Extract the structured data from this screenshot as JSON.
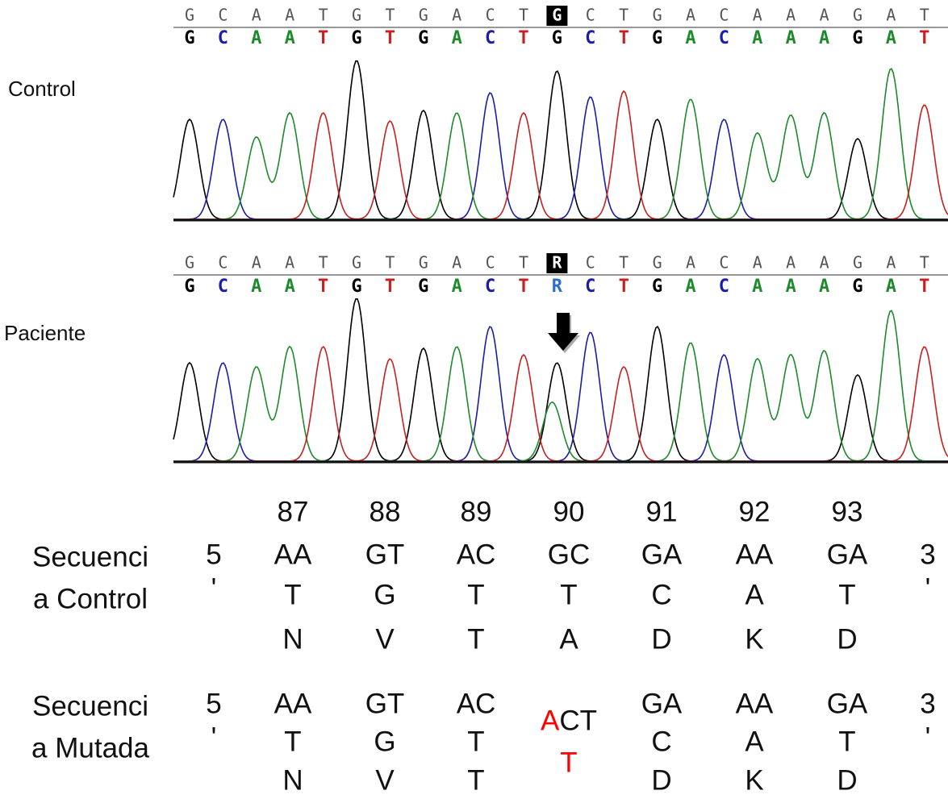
{
  "panels": [
    {
      "label": "Control",
      "ref": [
        "G",
        "C",
        "A",
        "A",
        "T",
        "G",
        "T",
        "G",
        "A",
        "C",
        "T",
        "G",
        "C",
        "T",
        "G",
        "A",
        "C",
        "A",
        "A",
        "A",
        "G",
        "A",
        "T"
      ],
      "call": [
        "G",
        "C",
        "A",
        "A",
        "T",
        "G",
        "T",
        "G",
        "A",
        "C",
        "T",
        "G",
        "C",
        "T",
        "G",
        "A",
        "C",
        "A",
        "A",
        "A",
        "G",
        "A",
        "T"
      ]
    },
    {
      "label": "Paciente",
      "ref": [
        "G",
        "C",
        "A",
        "A",
        "T",
        "G",
        "T",
        "G",
        "A",
        "C",
        "T",
        "R",
        "C",
        "T",
        "G",
        "A",
        "C",
        "A",
        "A",
        "A",
        "G",
        "A",
        "T"
      ],
      "call": [
        "G",
        "C",
        "A",
        "A",
        "T",
        "G",
        "T",
        "G",
        "A",
        "C",
        "T",
        "R",
        "C",
        "T",
        "G",
        "A",
        "C",
        "A",
        "A",
        "A",
        "G",
        "A",
        "T"
      ]
    }
  ],
  "highlight": 11,
  "base_colors": {
    "G": "#000000",
    "C": "#1c1ca8",
    "A": "#1d8a2c",
    "T": "#c82020",
    "R": "#2a6fd6"
  },
  "table": {
    "positions": [
      87,
      88,
      89,
      90,
      91,
      92,
      93
    ],
    "mutation_color": "#ff0000",
    "rows": [
      {
        "label": [
          "Secuenci",
          "a Control"
        ],
        "five": [
          "5",
          "'"
        ],
        "three": [
          "3",
          "'"
        ],
        "cells": [
          {
            "codon": [
              "AA",
              "T"
            ],
            "aa": "N"
          },
          {
            "codon": [
              "GT",
              "G"
            ],
            "aa": "V"
          },
          {
            "codon": [
              "AC",
              "T"
            ],
            "aa": "T"
          },
          {
            "codon": [
              "GC",
              "T"
            ],
            "aa": "A"
          },
          {
            "codon": [
              "GA",
              "C"
            ],
            "aa": "D"
          },
          {
            "codon": [
              "AA",
              "A"
            ],
            "aa": "K"
          },
          {
            "codon": [
              "GA",
              "T"
            ],
            "aa": "D"
          }
        ]
      },
      {
        "label": [
          "Secuenci",
          "a Mutada"
        ],
        "five": [
          "5",
          "'"
        ],
        "three": [
          "3",
          "'"
        ],
        "cells": [
          {
            "codon": [
              "AA",
              "T"
            ],
            "aa": "N"
          },
          {
            "codon": [
              "GT",
              "G"
            ],
            "aa": "V"
          },
          {
            "codon": [
              "AC",
              "T"
            ],
            "aa": "T"
          },
          {
            "changed_base": "A",
            "codon_rest": "CT",
            "aa": "T"
          },
          {
            "codon": [
              "GA",
              "C"
            ],
            "aa": "D"
          },
          {
            "codon": [
              "AA",
              "A"
            ],
            "aa": "K"
          },
          {
            "codon": [
              "GA",
              "T"
            ],
            "aa": "D"
          }
        ]
      }
    ]
  }
}
